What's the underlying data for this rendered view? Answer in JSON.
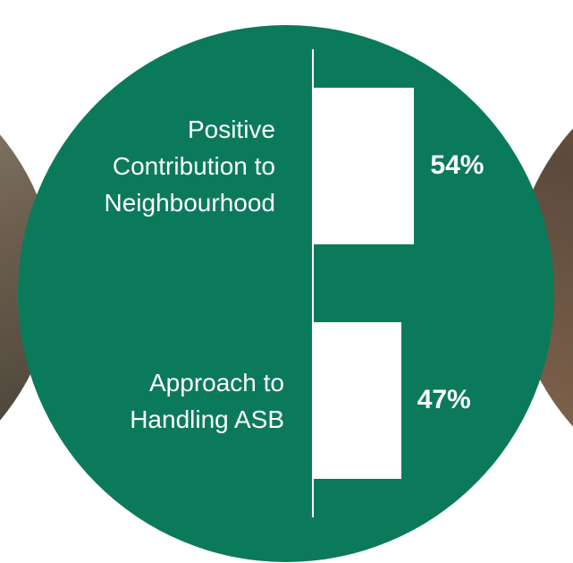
{
  "chart_data": {
    "type": "bar",
    "orientation": "horizontal",
    "categories": [
      "Positive\nContribution to\nNeighbourhood",
      "Approach to\nHandling ASB"
    ],
    "values": [
      54,
      47
    ],
    "value_labels": [
      "54%",
      "47%"
    ],
    "color": "#ffffff"
  }
}
